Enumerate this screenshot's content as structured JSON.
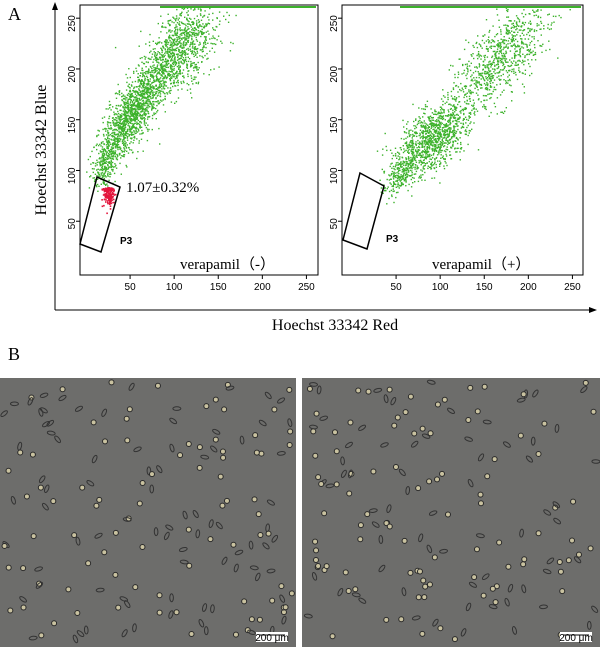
{
  "figure": {
    "panel_a": "A",
    "panel_b": "B",
    "y_label": "Hoechst 33342 Blue",
    "x_label": "Hoechst 33342 Red",
    "plots": [
      {
        "condition": "verapamil（-）",
        "gate": "P3",
        "annotation": "1.07±0.32%",
        "xlim": [
          0,
          262
        ],
        "ylim": [
          0,
          262
        ],
        "xticks": [
          50,
          100,
          150,
          200,
          250
        ],
        "yticks": [
          50,
          100,
          150,
          200,
          250
        ]
      },
      {
        "condition": "verapamil（+）",
        "gate": "P3",
        "xlim": [
          0,
          262
        ],
        "ylim": [
          0,
          262
        ],
        "xticks": [
          50,
          100,
          150,
          200,
          250
        ],
        "yticks": [
          50,
          100,
          150,
          200,
          250
        ]
      }
    ],
    "scale_bar": "200 μm"
  }
}
